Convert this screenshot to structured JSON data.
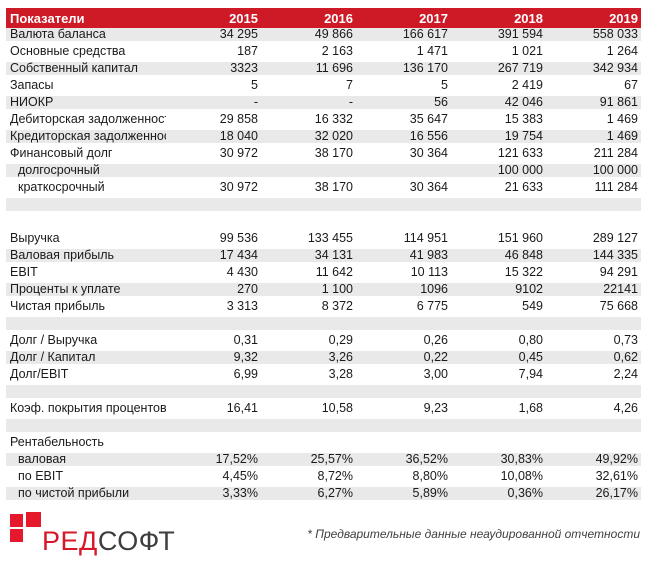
{
  "colors": {
    "header_red": "#CD1A26",
    "row_shade": "#E9E9E9",
    "text": "#1A1A1A",
    "logo_square_red": "#E6182C",
    "logo_text_red": "#D7182A",
    "logo_text_dark": "#3D3D3D",
    "footnote_gray": "#3F3F3F"
  },
  "logo": {
    "name": "redsoft-logo",
    "text_red": "РЕД",
    "text_dark": "СОФТ"
  },
  "footnote": "* Предварительные данные неаудированной отчетности",
  "table": {
    "header": {
      "label": "Показатели",
      "years": [
        "2015",
        "2016",
        "2017",
        "2018",
        "2019"
      ]
    },
    "rows": [
      {
        "label": "Валюта баланса",
        "values": [
          "34 295",
          "49 866",
          "166 617",
          "391 594",
          "558 033"
        ],
        "shaded": true
      },
      {
        "label": "Основные средства",
        "values": [
          "187",
          "2 163",
          "1 471",
          "1 021",
          "1 264"
        ],
        "shaded": false
      },
      {
        "label": "Собственный капитал",
        "values": [
          "3323",
          "11 696",
          "136 170",
          "267 719",
          "342 934"
        ],
        "shaded": true
      },
      {
        "label": "Запасы",
        "values": [
          "5",
          "7",
          "5",
          "2 419",
          "67"
        ],
        "shaded": false
      },
      {
        "label": "НИОКР",
        "values": [
          "-",
          "-",
          "56",
          "42 046",
          "91 861"
        ],
        "shaded": true
      },
      {
        "label": "Дебиторская задолженность",
        "values": [
          "29 858",
          "16 332",
          "35 647",
          "15 383",
          "1 469"
        ],
        "shaded": false
      },
      {
        "label": "Кредиторская задолженность",
        "values": [
          "18 040",
          "32 020",
          "16 556",
          "19 754",
          "1 469"
        ],
        "shaded": true
      },
      {
        "label": "Финансовый долг",
        "values": [
          "30 972",
          "38 170",
          "30 364",
          "121 633",
          "211 284"
        ],
        "shaded": false
      },
      {
        "label": "долгосрочный",
        "values": [
          "",
          "",
          "",
          "100 000",
          "100 000"
        ],
        "shaded": true,
        "indent": true
      },
      {
        "label": "краткосрочный",
        "values": [
          "30 972",
          "38 170",
          "30 364",
          "21 633",
          "111 284"
        ],
        "shaded": false,
        "indent": true
      },
      {
        "spacer": true,
        "shaded": true
      },
      {
        "spacer": true,
        "shaded": false
      },
      {
        "label": "Выручка",
        "values": [
          "99 536",
          "133 455",
          "114 951",
          "151 960",
          "289 127"
        ],
        "shaded": false
      },
      {
        "label": "Валовая прибыль",
        "values": [
          "17 434",
          "34 131",
          "41 983",
          "46 848",
          "144 335"
        ],
        "shaded": true
      },
      {
        "label": "EBIT",
        "values": [
          "4 430",
          "11 642",
          "10 113",
          "15 322",
          "94 291"
        ],
        "shaded": false
      },
      {
        "label": "Проценты к уплате",
        "values": [
          "270",
          "1 100",
          "1096",
          "9102",
          "22141"
        ],
        "shaded": true
      },
      {
        "label": "Чистая прибыль",
        "values": [
          "3 313",
          "8 372",
          "6 775",
          "549",
          "75 668"
        ],
        "shaded": false
      },
      {
        "spacer": true,
        "shaded": true
      },
      {
        "label": "Долг / Выручка",
        "values": [
          "0,31",
          "0,29",
          "0,26",
          "0,80",
          "0,73"
        ],
        "shaded": false
      },
      {
        "label": "Долг / Капитал",
        "values": [
          "9,32",
          "3,26",
          "0,22",
          "0,45",
          "0,62"
        ],
        "shaded": true
      },
      {
        "label": "Долг/EBIT",
        "values": [
          "6,99",
          "3,28",
          "3,00",
          "7,94",
          "2,24"
        ],
        "shaded": false
      },
      {
        "spacer": true,
        "shaded": true
      },
      {
        "label": "Коэф. покрытия процентов",
        "values": [
          "16,41",
          "10,58",
          "9,23",
          "1,68",
          "4,26"
        ],
        "shaded": false
      },
      {
        "spacer": true,
        "shaded": true
      },
      {
        "label": "Рентабельность",
        "values": [
          "",
          "",
          "",
          "",
          ""
        ],
        "shaded": false
      },
      {
        "label": "валовая",
        "values": [
          "17,52%",
          "25,57%",
          "36,52%",
          "30,83%",
          "49,92%"
        ],
        "shaded": true,
        "indent": true
      },
      {
        "label": "по EBIT",
        "values": [
          "4,45%",
          "8,72%",
          "8,80%",
          "10,08%",
          "32,61%"
        ],
        "shaded": false,
        "indent": true
      },
      {
        "label": "по чистой прибыли",
        "values": [
          "3,33%",
          "6,27%",
          "5,89%",
          "0,36%",
          "26,17%"
        ],
        "shaded": true,
        "indent": true
      }
    ]
  }
}
